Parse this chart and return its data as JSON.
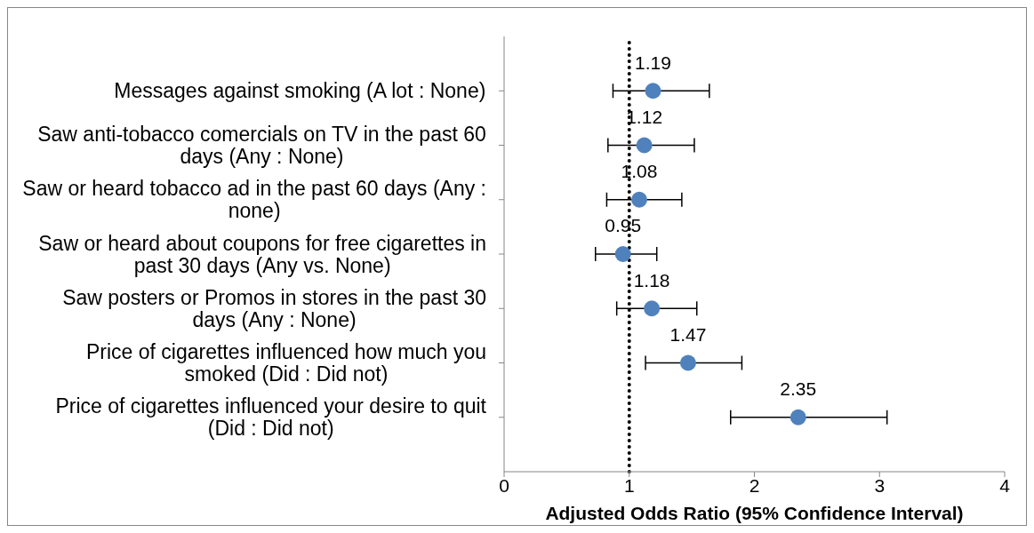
{
  "chart_data": {
    "type": "scatter",
    "xlabel": "Adjusted Odds Ratio (95% Confidence Interval)",
    "categories": [
      "Messages against smoking (A lot : None)",
      "Saw anti-tobacco comercials on TV in the past 60 days (Any : None)",
      "Saw or heard tobacco ad in the past 60 days (Any : none)",
      "Saw or heard about coupons for free cigarettes in past 30 days (Any vs. None)",
      "Saw posters or Promos in stores in the past 30 days (Any : None)",
      "Price of cigarettes influenced how much you smoked (Did : Did not)",
      "Price of cigarettes influenced your desire to quit (Did : Did not)"
    ],
    "orientation": "horizontal",
    "color": "#4f81bd",
    "values": [
      1.19,
      1.12,
      1.08,
      0.95,
      1.18,
      1.47,
      2.35
    ],
    "errors": [
      [
        0.87,
        1.64
      ],
      [
        0.83,
        1.52
      ],
      [
        0.82,
        1.42
      ],
      [
        0.73,
        1.22
      ],
      [
        0.9,
        1.54
      ],
      [
        1.13,
        1.9
      ],
      [
        1.81,
        3.06
      ]
    ],
    "xlim": [
      0,
      4
    ],
    "xticks": [
      0,
      1,
      2,
      3,
      4
    ],
    "ref_lines": [
      {
        "axis": "x",
        "value": 1,
        "color": "#000000",
        "line_style": "dotted"
      }
    ],
    "data_labels": true,
    "marker": "circle",
    "grid": false,
    "legend": false
  }
}
